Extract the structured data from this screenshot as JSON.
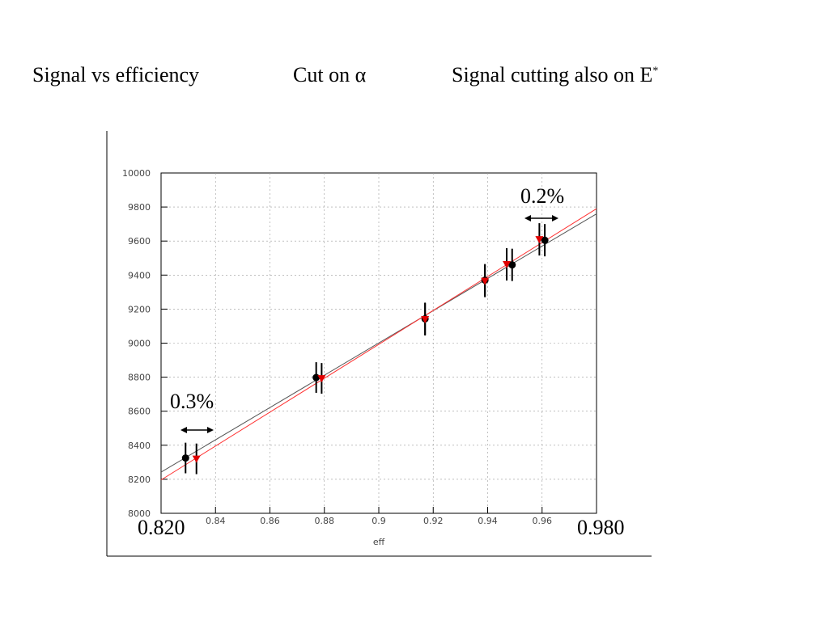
{
  "slide": {
    "title_left": "Signal vs efficiency",
    "title_middle": "Cut on α",
    "title_right": "Signal cutting also on E",
    "title_right_sup": "*"
  },
  "annotations": {
    "left_pct": "0.3%",
    "right_pct": "0.2%",
    "xmin_label": "0.820",
    "xmax_label": "0.980"
  },
  "colors": {
    "series_black": "#000000",
    "series_red": "#e00000",
    "fit_black": "#555555",
    "fit_red": "#ff3030"
  },
  "chart_data": {
    "type": "scatter",
    "title": "",
    "xlabel": "eff",
    "ylabel": "",
    "xlim": [
      0.82,
      0.98
    ],
    "ylim": [
      8000,
      10000
    ],
    "x_ticks": [
      0.84,
      0.86,
      0.88,
      0.9,
      0.92,
      0.94,
      0.96
    ],
    "x_tick_labels": [
      "0.84",
      "0.86",
      "0.88",
      "0.9",
      "0.92",
      "0.94",
      "0.96"
    ],
    "y_ticks": [
      8000,
      8200,
      8400,
      8600,
      8800,
      9000,
      9200,
      9400,
      9600,
      9800,
      10000
    ],
    "y_tick_labels": [
      "8000",
      "8200",
      "8400",
      "8600",
      "8800",
      "9000",
      "9200",
      "9400",
      "9600",
      "9800",
      "10000"
    ],
    "grid": true,
    "series": [
      {
        "marker": "circle",
        "color": "#000000",
        "points": [
          {
            "x": 0.829,
            "y": 8325,
            "err": 90
          },
          {
            "x": 0.877,
            "y": 8798,
            "err": 90
          },
          {
            "x": 0.917,
            "y": 9143,
            "err": 95
          },
          {
            "x": 0.939,
            "y": 9370,
            "err": 95
          },
          {
            "x": 0.949,
            "y": 9460,
            "err": 95
          },
          {
            "x": 0.961,
            "y": 9605,
            "err": 95
          }
        ],
        "fit": {
          "x": [
            0.82,
            0.98
          ],
          "y": [
            8242,
            9760
          ]
        }
      },
      {
        "marker": "triangle-down",
        "color": "#e00000",
        "points": [
          {
            "x": 0.833,
            "y": 8320,
            "err": 90
          },
          {
            "x": 0.879,
            "y": 8793,
            "err": 90
          },
          {
            "x": 0.917,
            "y": 9140,
            "err": 95
          },
          {
            "x": 0.939,
            "y": 9365,
            "err": 95
          },
          {
            "x": 0.947,
            "y": 9463,
            "err": 95
          },
          {
            "x": 0.959,
            "y": 9610,
            "err": 95
          }
        ],
        "fit": {
          "x": [
            0.82,
            0.98
          ],
          "y": [
            8196,
            9790
          ]
        }
      }
    ]
  }
}
